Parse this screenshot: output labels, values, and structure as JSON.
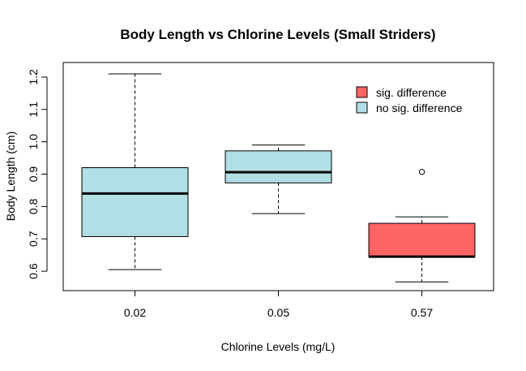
{
  "chart_data": {
    "type": "box",
    "title": "Body Length vs Chlorine Levels (Small Striders)",
    "xlabel": "Chlorine Levels (mg/L)",
    "ylabel": "Body Length (cm)",
    "ylim": [
      0.54,
      1.245
    ],
    "yticks": [
      0.6,
      0.7,
      0.8,
      0.9,
      1.0,
      1.1,
      1.2
    ],
    "ytick_labels": [
      "0.6",
      "0.7",
      "0.8",
      "0.9",
      "1.0",
      "1.1",
      "1.2"
    ],
    "categories": [
      "0.02",
      "0.05",
      "0.57"
    ],
    "boxes": [
      {
        "category": "0.02",
        "min": 0.605,
        "q1": 0.707,
        "median": 0.84,
        "q3": 0.92,
        "max": 1.21,
        "outliers": [],
        "group": "no sig. difference"
      },
      {
        "category": "0.05",
        "min": 0.778,
        "q1": 0.873,
        "median": 0.906,
        "q3": 0.972,
        "max": 0.99,
        "outliers": [],
        "group": "no sig. difference"
      },
      {
        "category": "0.57",
        "min": 0.567,
        "q1": 0.645,
        "median": 0.645,
        "q3": 0.748,
        "max": 0.768,
        "outliers": [
          0.907
        ],
        "group": "sig. difference"
      }
    ],
    "legend": [
      {
        "label": "sig. difference",
        "color": "#FF6464"
      },
      {
        "label": "no sig. difference",
        "color": "#B0DFE5"
      }
    ],
    "legend_position": "top-right",
    "grid": false
  }
}
